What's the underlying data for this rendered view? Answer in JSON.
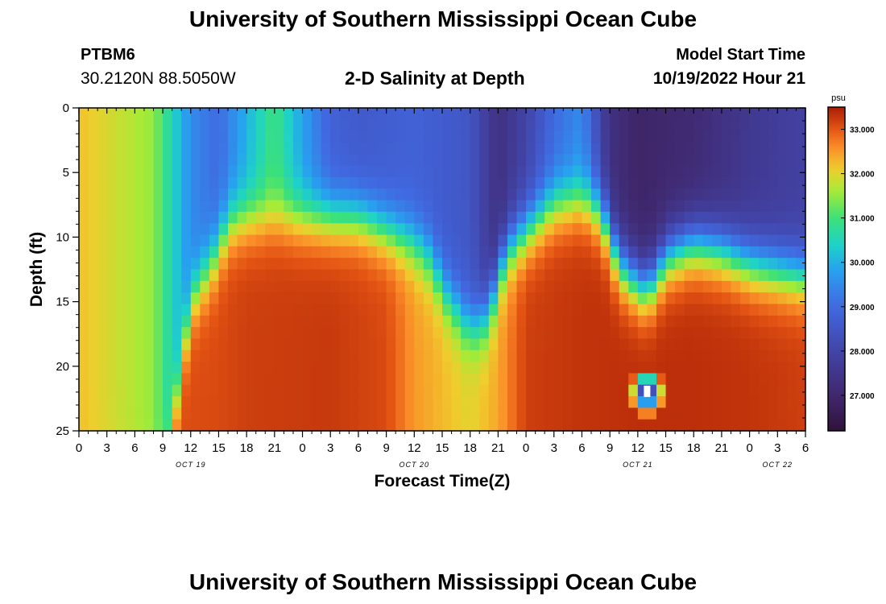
{
  "header": {
    "title": "University of Southern Mississippi Ocean Cube",
    "station": "PTBM6",
    "coordinates": "30.2120N  88.5050W",
    "chart_title": "2-D Salinity at Depth",
    "model_start_label": "Model Start Time",
    "model_start_value": "10/19/2022 Hour 21"
  },
  "footer": {
    "title": "University of Southern Mississippi Ocean Cube"
  },
  "chart_data": {
    "type": "heatmap",
    "title": "2-D Salinity at Depth",
    "xlabel": "Forecast Time(Z)",
    "ylabel": "Depth (ft)",
    "x_range_hours": [
      0,
      78
    ],
    "ylim": [
      0,
      25
    ],
    "y_ticks": [
      "0",
      "5",
      "10",
      "15",
      "20",
      "25"
    ],
    "x_ticks": [
      "0",
      "3",
      "6",
      "9",
      "12",
      "15",
      "18",
      "21",
      "0",
      "3",
      "6",
      "9",
      "12",
      "15",
      "18",
      "21",
      "0",
      "3",
      "6",
      "9",
      "12",
      "15",
      "18",
      "21",
      "0",
      "3",
      "6"
    ],
    "date_labels": [
      {
        "text": "OCT 19",
        "hour": 12
      },
      {
        "text": "OCT 20",
        "hour": 36
      },
      {
        "text": "OCT 21",
        "hour": 60
      },
      {
        "text": "OCT 22",
        "hour": 75
      }
    ],
    "colorbar": {
      "unit": "psu",
      "min": 26.2,
      "max": 33.5,
      "ticks": [
        "33.000",
        "32.000",
        "31.000",
        "30.000",
        "29.000",
        "28.000",
        "27.000"
      ]
    },
    "profile_model": {
      "halocline_depth_ft": [
        [
          0,
          30
        ],
        [
          9,
          30
        ],
        [
          12,
          15
        ],
        [
          15,
          11
        ],
        [
          16,
          9
        ],
        [
          18,
          8.5
        ],
        [
          21,
          8.5
        ],
        [
          24,
          8.5
        ],
        [
          30,
          8.5
        ],
        [
          33,
          9.5
        ],
        [
          36,
          10.5
        ],
        [
          38,
          12
        ],
        [
          39,
          14
        ],
        [
          42,
          17
        ],
        [
          44,
          16
        ],
        [
          45,
          13
        ],
        [
          46,
          11
        ],
        [
          48,
          9.5
        ],
        [
          51,
          7.5
        ],
        [
          54,
          7
        ],
        [
          56,
          8
        ],
        [
          57,
          10
        ],
        [
          58,
          12
        ],
        [
          60,
          13.5
        ],
        [
          61,
          14
        ],
        [
          62,
          13
        ],
        [
          63,
          11.5
        ],
        [
          66,
          10.5
        ],
        [
          69,
          11
        ],
        [
          72,
          12
        ],
        [
          78,
          13
        ]
      ],
      "top_salinity": [
        [
          0,
          32.2
        ],
        [
          8,
          31.5
        ],
        [
          10,
          30.5
        ],
        [
          12,
          29.5
        ],
        [
          15,
          29.0
        ],
        [
          18,
          30.0
        ],
        [
          21,
          31.0
        ],
        [
          24,
          29.8
        ],
        [
          27,
          28.8
        ],
        [
          30,
          28.6
        ],
        [
          36,
          28.8
        ],
        [
          42,
          28.5
        ],
        [
          45,
          27.3
        ],
        [
          48,
          28.0
        ],
        [
          51,
          29.0
        ],
        [
          54,
          29.5
        ],
        [
          57,
          27.3
        ],
        [
          60,
          26.9
        ],
        [
          66,
          27.1
        ],
        [
          72,
          27.6
        ],
        [
          78,
          27.9
        ]
      ],
      "bottom_salinity": [
        [
          0,
          33.0
        ],
        [
          15,
          33.1
        ],
        [
          18,
          33.2
        ],
        [
          27,
          33.25
        ],
        [
          33,
          33.1
        ],
        [
          36,
          32.5
        ],
        [
          42,
          32.0
        ],
        [
          45,
          32.4
        ],
        [
          48,
          33.2
        ],
        [
          54,
          33.3
        ],
        [
          60,
          33.35
        ],
        [
          66,
          33.35
        ],
        [
          72,
          33.3
        ],
        [
          78,
          33.2
        ]
      ],
      "anomaly": {
        "hour": 61,
        "depth_ft": 22,
        "value": 26.5
      }
    }
  }
}
